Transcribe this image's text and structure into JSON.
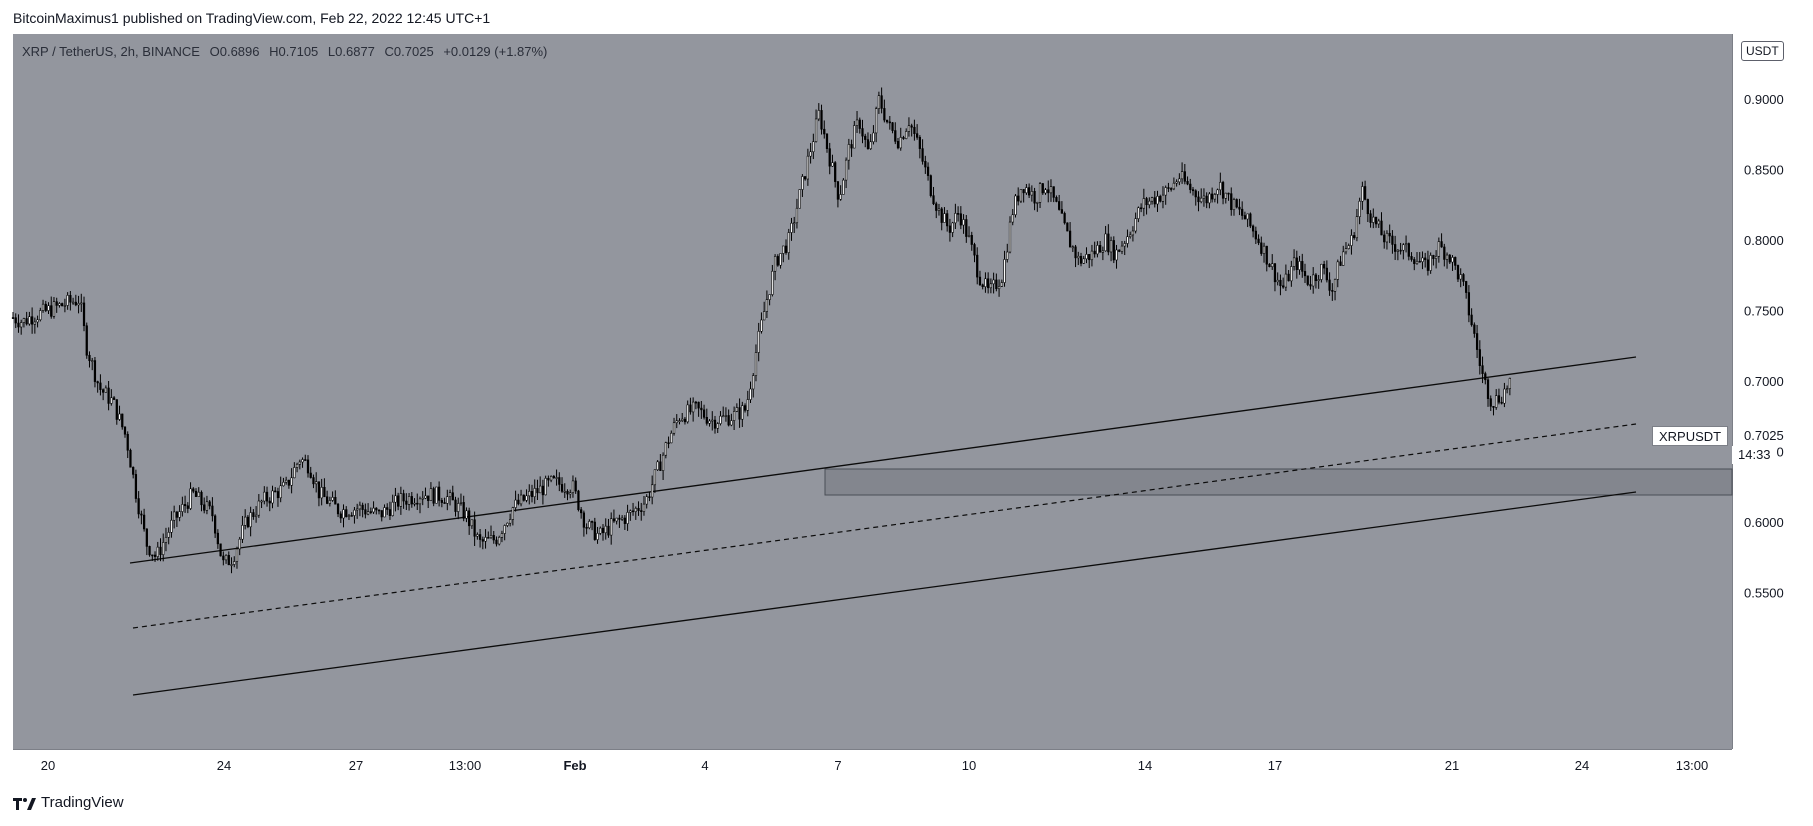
{
  "header": {
    "publisher": "BitcoinMaximus1 published on TradingView.com, Feb 22, 2022 12:45 UTC+1"
  },
  "legend": {
    "symbol": "XRP / TetherUS, 2h, BINANCE",
    "o_label": "O",
    "o_value": "0.6896",
    "h_label": "H",
    "h_value": "0.7105",
    "l_label": "L",
    "l_value": "0.6877",
    "c_label": "C",
    "c_value": "0.7025",
    "change": "+0.0129 (+1.87%)"
  },
  "currency_badge": "USDT",
  "price_label": {
    "name": "XRPUSDT",
    "price": "0.7025",
    "countdown": "14:33"
  },
  "footer": {
    "brand": "TradingView"
  },
  "colors": {
    "plot_bg": "#93969e",
    "candle_up": "#ffffff",
    "candle_down": "#000000",
    "wick": "#000000"
  },
  "chart_data": {
    "type": "candlestick",
    "y_ticks": [
      "0.9000",
      "0.8500",
      "0.8000",
      "0.7500",
      "0.7000",
      "0.6500",
      "0.6000",
      "0.5500"
    ],
    "x_ticks": [
      "20",
      "24",
      "27",
      "13:00",
      "Feb",
      "4",
      "7",
      "10",
      "14",
      "17",
      "21",
      "24",
      "13:00"
    ],
    "ylim": [
      0.51,
      0.935
    ],
    "price_path": [
      [
        0,
        0.745
      ],
      [
        0.3,
        0.742
      ],
      [
        0.5,
        0.745
      ],
      [
        1.6,
        0.755
      ],
      [
        2.0,
        0.758
      ],
      [
        2.2,
        0.725
      ],
      [
        2.6,
        0.695
      ],
      [
        3.0,
        0.685
      ],
      [
        3.4,
        0.66
      ],
      [
        3.7,
        0.62
      ],
      [
        4.0,
        0.585
      ],
      [
        4.3,
        0.575
      ],
      [
        4.8,
        0.6
      ],
      [
        5.4,
        0.62
      ],
      [
        6.0,
        0.605
      ],
      [
        6.3,
        0.57
      ],
      [
        6.6,
        0.575
      ],
      [
        7.0,
        0.6
      ],
      [
        7.5,
        0.615
      ],
      [
        8.2,
        0.625
      ],
      [
        8.6,
        0.645
      ],
      [
        8.9,
        0.64
      ],
      [
        9.2,
        0.62
      ],
      [
        9.8,
        0.608
      ],
      [
        10.4,
        0.61
      ],
      [
        11.0,
        0.605
      ],
      [
        11.6,
        0.615
      ],
      [
        12.3,
        0.62
      ],
      [
        13.0,
        0.618
      ],
      [
        13.6,
        0.605
      ],
      [
        14.0,
        0.585
      ],
      [
        14.5,
        0.588
      ],
      [
        15.0,
        0.61
      ],
      [
        15.6,
        0.62
      ],
      [
        16.2,
        0.628
      ],
      [
        16.8,
        0.625
      ],
      [
        17.2,
        0.598
      ],
      [
        17.6,
        0.59
      ],
      [
        18.0,
        0.598
      ],
      [
        18.5,
        0.605
      ],
      [
        19.0,
        0.615
      ],
      [
        19.4,
        0.64
      ],
      [
        19.7,
        0.66
      ],
      [
        20.0,
        0.675
      ],
      [
        20.5,
        0.68
      ],
      [
        21.0,
        0.672
      ],
      [
        21.6,
        0.675
      ],
      [
        22.0,
        0.68
      ],
      [
        22.3,
        0.72
      ],
      [
        22.6,
        0.755
      ],
      [
        22.9,
        0.785
      ],
      [
        23.3,
        0.8
      ],
      [
        23.6,
        0.83
      ],
      [
        23.9,
        0.86
      ],
      [
        24.2,
        0.89
      ],
      [
        24.5,
        0.86
      ],
      [
        24.8,
        0.83
      ],
      [
        25.1,
        0.865
      ],
      [
        25.4,
        0.885
      ],
      [
        25.7,
        0.86
      ],
      [
        26.0,
        0.9
      ],
      [
        26.3,
        0.88
      ],
      [
        26.6,
        0.87
      ],
      [
        26.9,
        0.885
      ],
      [
        27.2,
        0.865
      ],
      [
        27.5,
        0.84
      ],
      [
        27.8,
        0.82
      ],
      [
        28.1,
        0.808
      ],
      [
        28.4,
        0.82
      ],
      [
        28.7,
        0.8
      ],
      [
        29.0,
        0.775
      ],
      [
        29.3,
        0.762
      ],
      [
        29.7,
        0.775
      ],
      [
        30.0,
        0.82
      ],
      [
        30.3,
        0.84
      ],
      [
        30.7,
        0.83
      ],
      [
        31.0,
        0.84
      ],
      [
        31.3,
        0.825
      ],
      [
        31.7,
        0.8
      ],
      [
        32.0,
        0.785
      ],
      [
        32.4,
        0.79
      ],
      [
        32.8,
        0.8
      ],
      [
        33.1,
        0.79
      ],
      [
        33.5,
        0.805
      ],
      [
        33.9,
        0.825
      ],
      [
        34.3,
        0.83
      ],
      [
        34.7,
        0.835
      ],
      [
        35.0,
        0.845
      ],
      [
        35.4,
        0.835
      ],
      [
        35.8,
        0.828
      ],
      [
        36.2,
        0.84
      ],
      [
        36.6,
        0.825
      ],
      [
        37.0,
        0.815
      ],
      [
        37.4,
        0.8
      ],
      [
        37.8,
        0.78
      ],
      [
        38.1,
        0.765
      ],
      [
        38.5,
        0.785
      ],
      [
        38.9,
        0.77
      ],
      [
        39.3,
        0.78
      ],
      [
        39.6,
        0.765
      ],
      [
        39.9,
        0.79
      ],
      [
        40.2,
        0.8
      ],
      [
        40.5,
        0.835
      ],
      [
        40.8,
        0.815
      ],
      [
        41.2,
        0.8
      ],
      [
        41.6,
        0.795
      ],
      [
        42.0,
        0.79
      ],
      [
        42.4,
        0.78
      ],
      [
        42.8,
        0.795
      ],
      [
        43.1,
        0.79
      ],
      [
        43.5,
        0.77
      ],
      [
        43.8,
        0.74
      ],
      [
        44.1,
        0.705
      ],
      [
        44.4,
        0.685
      ],
      [
        44.7,
        0.69
      ],
      [
        45.0,
        0.7025
      ]
    ]
  }
}
